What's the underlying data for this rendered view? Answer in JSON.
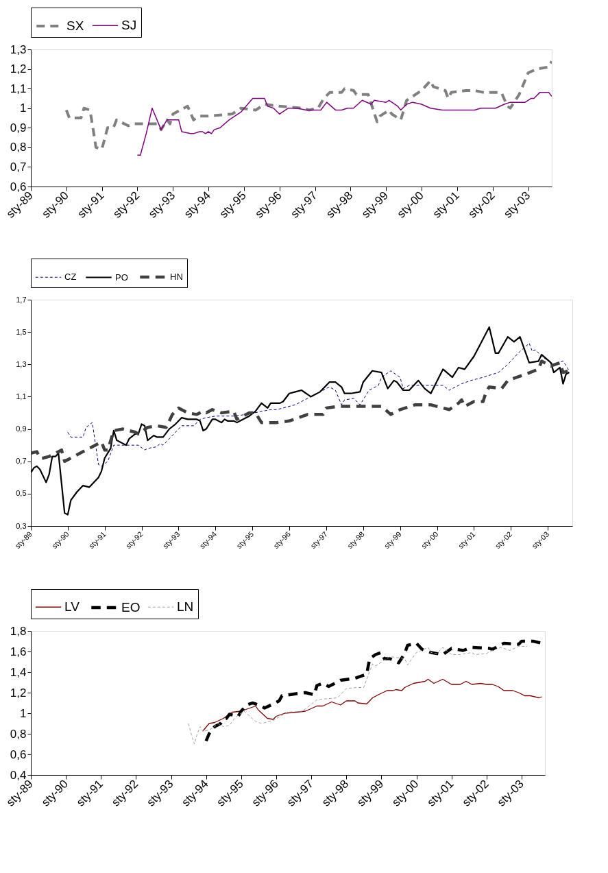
{
  "chart_data": [
    {
      "type": "line",
      "legend": "top",
      "xlim": [
        "1989-01",
        "2003-09"
      ],
      "ylim": [
        0.6,
        1.3
      ],
      "xticks": [
        {
          "value": "1989-01",
          "label": "sty-89"
        },
        {
          "value": "1990-01",
          "label": "sty-90"
        },
        {
          "value": "1991-01",
          "label": "sty-91"
        },
        {
          "value": "1992-01",
          "label": "sty-92"
        },
        {
          "value": "1993-01",
          "label": "sty-93"
        },
        {
          "value": "1994-01",
          "label": "sty-94"
        },
        {
          "value": "1995-01",
          "label": "sty-95"
        },
        {
          "value": "1996-01",
          "label": "sty-96"
        },
        {
          "value": "1997-01",
          "label": "sty-97"
        },
        {
          "value": "1998-01",
          "label": "sty-98"
        },
        {
          "value": "1999-01",
          "label": "sty-99"
        },
        {
          "value": "2000-01",
          "label": "sty-00"
        },
        {
          "value": "2001-01",
          "label": "sty-01"
        },
        {
          "value": "2002-01",
          "label": "sty-02"
        },
        {
          "value": "2003-01",
          "label": "sty-03"
        }
      ],
      "yticks": [
        {
          "value": 0.6,
          "label": "0,6"
        },
        {
          "value": 0.7,
          "label": "0,7"
        },
        {
          "value": 0.8,
          "label": "0,8"
        },
        {
          "value": 0.9,
          "label": "0,9"
        },
        1,
        {
          "value": 1.1,
          "label": "1,1"
        },
        {
          "value": 1.2,
          "label": "1,2"
        },
        {
          "value": 1.3,
          "label": "1,3"
        }
      ],
      "series": [
        {
          "name": "SX",
          "color": "#808080",
          "line_style": "dashed",
          "x": [
            "1990-01",
            "1990-02",
            "1990-06",
            "1990-07",
            "1990-09",
            "1990-10",
            "1990-11",
            "1991-01",
            "1991-03",
            "1991-05",
            "1991-06",
            "1991-10",
            "1991-12",
            "1992-06",
            "1992-08",
            "1992-09",
            "1992-11",
            "1992-12",
            "1993-01",
            "1993-06",
            "1993-08",
            "1993-10",
            "1994-01",
            "1994-09",
            "1994-12",
            "1995-05",
            "1995-08",
            "1996-01",
            "1996-09",
            "1996-11",
            "1997-02",
            "1997-04",
            "1997-06",
            "1997-10",
            "1997-11",
            "1998-02",
            "1998-03",
            "1998-07",
            "1998-10",
            "1998-11",
            "1999-02",
            "1999-03",
            "1999-06",
            "1999-08",
            "2000-01",
            "2000-04",
            "2000-05",
            "2000-09",
            "2000-10",
            "2000-11",
            "2001-04",
            "2001-07",
            "2001-10",
            "2002-04",
            "2002-06",
            "2002-07",
            "2002-10",
            "2003-01",
            "2003-04",
            "2003-08",
            "2003-09"
          ],
          "values": [
            0.99,
            0.95,
            0.95,
            1.0,
            0.99,
            0.9,
            0.8,
            0.79,
            0.9,
            0.9,
            0.94,
            0.91,
            0.92,
            0.92,
            0.92,
            0.89,
            0.94,
            0.92,
            0.97,
            1.01,
            0.94,
            0.96,
            0.96,
            0.97,
            1.0,
            0.99,
            1.02,
            1.01,
            1.0,
            0.99,
            1.0,
            1.05,
            1.08,
            1.08,
            1.1,
            1.09,
            1.07,
            1.07,
            0.93,
            0.96,
            0.99,
            0.97,
            0.94,
            1.04,
            1.09,
            1.14,
            1.11,
            1.09,
            1.05,
            1.08,
            1.09,
            1.09,
            1.08,
            1.08,
            1.01,
            1.0,
            1.07,
            1.18,
            1.2,
            1.21,
            1.24
          ]
        },
        {
          "name": "SJ",
          "color": "#800080",
          "line_style": "solid",
          "x": [
            "1992-01",
            "1992-02",
            "1992-04",
            "1992-06",
            "1992-09",
            "1992-11",
            "1993-01",
            "1993-03",
            "1993-04",
            "1993-07",
            "1993-08",
            "1993-10",
            "1993-11",
            "1993-12",
            "1994-01",
            "1994-02",
            "1994-03",
            "1994-05",
            "1994-08",
            "1994-12",
            "1995-04",
            "1995-08",
            "1995-09",
            "1995-11",
            "1996-01",
            "1996-04",
            "1996-07",
            "1996-10",
            "1997-03",
            "1997-05",
            "1997-08",
            "1997-10",
            "1997-12",
            "1998-02",
            "1998-05",
            "1998-08",
            "1998-09",
            "1999-01",
            "1999-02",
            "1999-05",
            "1999-06",
            "1999-08",
            "1999-10",
            "2000-01",
            "2000-04",
            "2000-08",
            "2001-01",
            "2001-02",
            "2001-04",
            "2001-06",
            "2001-07",
            "2001-09",
            "2002-02",
            "2002-05",
            "2002-07",
            "2002-12",
            "2003-02",
            "2003-03",
            "2003-05",
            "2003-08",
            "2003-09"
          ],
          "values": [
            0.76,
            0.76,
            0.87,
            1.0,
            0.89,
            0.94,
            0.94,
            0.94,
            0.88,
            0.87,
            0.87,
            0.88,
            0.88,
            0.87,
            0.88,
            0.87,
            0.89,
            0.9,
            0.94,
            0.98,
            1.05,
            1.05,
            1.01,
            1.0,
            0.97,
            1.0,
            1.0,
            0.99,
            0.99,
            1.03,
            0.99,
            0.99,
            1.0,
            1.0,
            1.04,
            1.02,
            1.04,
            1.03,
            1.04,
            1.01,
            0.99,
            1.02,
            1.03,
            1.02,
            1.0,
            0.99,
            0.99,
            0.99,
            0.99,
            0.99,
            0.99,
            1.0,
            1.0,
            1.02,
            1.03,
            1.03,
            1.05,
            1.05,
            1.08,
            1.08,
            1.06
          ]
        }
      ]
    },
    {
      "type": "line",
      "legend": "top",
      "xlim": [
        "1989-01",
        "2003-09"
      ],
      "ylim": [
        0.3,
        1.7
      ],
      "xticks": [
        {
          "value": "1989-01",
          "label": "sty-89"
        },
        {
          "value": "1990-01",
          "label": "sty-90"
        },
        {
          "value": "1991-01",
          "label": "sty-91"
        },
        {
          "value": "1992-01",
          "label": "sty-92"
        },
        {
          "value": "1993-01",
          "label": "sty-93"
        },
        {
          "value": "1994-01",
          "label": "sty-94"
        },
        {
          "value": "1995-01",
          "label": "sty-95"
        },
        {
          "value": "1996-01",
          "label": "sty-96"
        },
        {
          "value": "1997-01",
          "label": "sty-97"
        },
        {
          "value": "1998-01",
          "label": "sty-98"
        },
        {
          "value": "1999-01",
          "label": "sty-99"
        },
        {
          "value": "2000-01",
          "label": "sty-00"
        },
        {
          "value": "2001-01",
          "label": "sty-01"
        },
        {
          "value": "2002-01",
          "label": "sty-02"
        },
        {
          "value": "2003-01",
          "label": "sty-03"
        }
      ],
      "yticks": [
        {
          "value": 0.3,
          "label": "0,3"
        },
        {
          "value": 0.5,
          "label": "0,5"
        },
        {
          "value": 0.7,
          "label": "0,7"
        },
        {
          "value": 0.9,
          "label": "0,9"
        },
        {
          "value": 1.1,
          "label": "1,1"
        },
        {
          "value": 1.3,
          "label": "1,3"
        },
        {
          "value": 1.5,
          "label": "1,5"
        },
        {
          "value": 1.7,
          "label": "1,7"
        }
      ],
      "series": [
        {
          "name": "CZ",
          "color": "#000080",
          "line_style": "dashed",
          "x": [
            "1990-01",
            "1990-02",
            "1990-04",
            "1990-06",
            "1990-07",
            "1990-09",
            "1990-11",
            "1990-12",
            "1991-02",
            "1991-04",
            "1991-06",
            "1991-12",
            "1992-02",
            "1992-03",
            "1992-06",
            "1992-07",
            "1992-08",
            "1992-11",
            "1993-02",
            "1993-05",
            "1993-06",
            "1993-08",
            "1993-10",
            "1994-01",
            "1994-07",
            "1994-11",
            "1995-07",
            "1995-09",
            "1996-03",
            "1996-06",
            "1996-11",
            "1997-02",
            "1997-04",
            "1997-06",
            "1997-07",
            "1997-10",
            "1997-12",
            "1998-03",
            "1998-06",
            "1998-07",
            "1998-10",
            "1999-01",
            "1999-02",
            "1999-04",
            "1999-11",
            "2000-03",
            "2000-05",
            "2000-09",
            "2000-12",
            "2001-04",
            "2001-09",
            "2001-12",
            "2002-04",
            "2002-07",
            "2002-08",
            "2002-09",
            "2002-11",
            "2003-03",
            "2003-06",
            "2003-08"
          ],
          "values": [
            0.88,
            0.85,
            0.85,
            0.85,
            0.91,
            0.94,
            0.68,
            0.67,
            0.7,
            0.8,
            0.8,
            0.8,
            0.77,
            0.78,
            0.79,
            0.81,
            0.8,
            0.86,
            0.92,
            0.92,
            0.92,
            0.96,
            0.97,
            0.98,
            0.98,
            0.99,
            1.02,
            1.02,
            1.05,
            1.08,
            1.13,
            1.16,
            1.14,
            1.05,
            1.08,
            1.09,
            1.05,
            1.14,
            1.17,
            1.22,
            1.26,
            1.22,
            1.15,
            1.17,
            1.17,
            1.17,
            1.14,
            1.18,
            1.2,
            1.22,
            1.25,
            1.3,
            1.38,
            1.43,
            1.38,
            1.39,
            1.35,
            1.3,
            1.32,
            1.26
          ]
        },
        {
          "name": "PO",
          "color": "#000000",
          "line_style": "solid",
          "x": [
            "1989-01",
            "1989-02",
            "1989-03",
            "1989-04",
            "1989-06",
            "1989-07",
            "1989-08",
            "1989-09",
            "1989-10",
            "1989-12",
            "1990-01",
            "1990-02",
            "1990-04",
            "1990-06",
            "1990-08",
            "1990-09",
            "1990-11",
            "1990-12",
            "1991-01",
            "1991-03",
            "1991-04",
            "1991-05",
            "1991-08",
            "1991-09",
            "1991-11",
            "1991-12",
            "1992-01",
            "1992-02",
            "1992-03",
            "1992-05",
            "1992-06",
            "1992-08",
            "1992-10",
            "1992-12",
            "1993-02",
            "1993-04",
            "1993-07",
            "1993-08",
            "1993-09",
            "1993-10",
            "1993-12",
            "1994-01",
            "1994-03",
            "1994-04",
            "1994-05",
            "1994-07",
            "1994-08",
            "1994-09",
            "1994-12",
            "1995-02",
            "1995-04",
            "1995-06",
            "1995-07",
            "1995-10",
            "1995-11",
            "1996-01",
            "1996-03",
            "1996-05",
            "1996-08",
            "1996-11",
            "1997-02",
            "1997-04",
            "1997-06",
            "1997-07",
            "1997-09",
            "1997-12",
            "1998-01",
            "1998-04",
            "1998-07",
            "1998-09",
            "1998-11",
            "1998-12",
            "1999-02",
            "1999-04",
            "1999-07",
            "1999-09",
            "1999-11",
            "2000-03",
            "2000-06",
            "2000-08",
            "2000-10",
            "2001-01",
            "2001-03",
            "2001-06",
            "2001-08",
            "2001-09",
            "2001-12",
            "2002-02",
            "2002-04",
            "2002-07",
            "2002-10",
            "2002-11",
            "2003-02",
            "2003-03",
            "2003-05",
            "2003-06",
            "2003-07",
            "2003-08"
          ],
          "values": [
            0.63,
            0.66,
            0.67,
            0.65,
            0.57,
            0.62,
            0.73,
            0.73,
            0.75,
            0.38,
            0.37,
            0.46,
            0.51,
            0.55,
            0.54,
            0.56,
            0.6,
            0.64,
            0.72,
            0.78,
            0.89,
            0.83,
            0.8,
            0.84,
            0.87,
            0.87,
            0.93,
            0.92,
            0.83,
            0.86,
            0.85,
            0.85,
            0.9,
            0.93,
            0.97,
            0.96,
            0.96,
            0.95,
            0.89,
            0.9,
            0.96,
            0.96,
            0.94,
            0.96,
            0.95,
            0.95,
            0.94,
            0.95,
            0.98,
            1.01,
            1.06,
            1.03,
            1.06,
            1.06,
            1.07,
            1.12,
            1.13,
            1.14,
            1.1,
            1.13,
            1.19,
            1.19,
            1.16,
            1.12,
            1.12,
            1.13,
            1.19,
            1.26,
            1.25,
            1.15,
            1.2,
            1.19,
            1.14,
            1.14,
            1.2,
            1.15,
            1.12,
            1.27,
            1.22,
            1.28,
            1.27,
            1.35,
            1.42,
            1.53,
            1.37,
            1.37,
            1.47,
            1.44,
            1.47,
            1.31,
            1.32,
            1.36,
            1.31,
            1.25,
            1.28,
            1.18,
            1.24,
            1.25
          ]
        },
        {
          "name": "HN",
          "color": "#404040",
          "line_style": "dashed",
          "x": [
            "1989-01",
            "1989-03",
            "1989-04",
            "1989-05",
            "1989-07",
            "1989-09",
            "1989-11",
            "1989-12",
            "1990-03",
            "1990-06",
            "1990-09",
            "1990-12",
            "1991-01",
            "1991-02",
            "1991-04",
            "1991-07",
            "1991-11",
            "1991-12",
            "1992-03",
            "1992-06",
            "1992-09",
            "1992-11",
            "1993-01",
            "1993-04",
            "1993-07",
            "1993-09",
            "1993-10",
            "1993-12",
            "1994-03",
            "1994-07",
            "1994-08",
            "1994-12",
            "1995-02",
            "1995-04",
            "1995-09",
            "1996-01",
            "1996-07",
            "1996-12",
            "1997-01",
            "1997-05",
            "1997-12",
            "1998-07",
            "1998-10",
            "1999-01",
            "1999-06",
            "1999-11",
            "2000-05",
            "2000-08",
            "2000-09",
            "2000-10",
            "2001-01",
            "2001-04",
            "2001-05",
            "2001-06",
            "2001-10",
            "2001-12",
            "2002-03",
            "2002-06",
            "2002-10",
            "2002-11",
            "2003-02",
            "2003-05",
            "2003-06",
            "2003-08"
          ],
          "values": [
            0.75,
            0.76,
            0.72,
            0.72,
            0.73,
            0.75,
            0.77,
            0.7,
            0.73,
            0.76,
            0.79,
            0.82,
            0.77,
            0.77,
            0.89,
            0.9,
            0.88,
            0.87,
            0.91,
            0.92,
            0.91,
            0.99,
            1.03,
            1.0,
            0.99,
            1.01,
            1.0,
            1.02,
            1.0,
            1.01,
            0.96,
            1.0,
            1.0,
            0.94,
            0.94,
            0.95,
            0.99,
            0.99,
            1.03,
            1.04,
            1.04,
            1.04,
            0.99,
            1.02,
            1.05,
            1.05,
            1.02,
            1.06,
            1.08,
            1.04,
            1.07,
            1.07,
            1.13,
            1.16,
            1.15,
            1.2,
            1.22,
            1.24,
            1.27,
            1.32,
            1.29,
            1.31,
            1.25,
            1.26
          ]
        }
      ]
    },
    {
      "type": "line",
      "legend": "top",
      "xlim": [
        "1989-01",
        "2003-09"
      ],
      "ylim": [
        0.4,
        1.8
      ],
      "xticks": [
        {
          "value": "1989-01",
          "label": "sty-89"
        },
        {
          "value": "1990-01",
          "label": "sty-90"
        },
        {
          "value": "1991-01",
          "label": "sty-91"
        },
        {
          "value": "1992-01",
          "label": "sty-92"
        },
        {
          "value": "1993-01",
          "label": "sty-93"
        },
        {
          "value": "1994-01",
          "label": "sty-94"
        },
        {
          "value": "1995-01",
          "label": "sty-95"
        },
        {
          "value": "1996-01",
          "label": "sty-96"
        },
        {
          "value": "1997-01",
          "label": "sty-97"
        },
        {
          "value": "1998-01",
          "label": "sty-98"
        },
        {
          "value": "1999-01",
          "label": "sty-99"
        },
        {
          "value": "2000-01",
          "label": "sty-00"
        },
        {
          "value": "2001-01",
          "label": "sty-01"
        },
        {
          "value": "2002-01",
          "label": "sty-02"
        },
        {
          "value": "2003-01",
          "label": "sty-03"
        }
      ],
      "yticks": [
        {
          "value": 0.4,
          "label": "0,4"
        },
        {
          "value": 0.6,
          "label": "0,6"
        },
        {
          "value": 0.8,
          "label": "0,8"
        },
        1,
        {
          "value": 1.2,
          "label": "1,2"
        },
        {
          "value": 1.4,
          "label": "1,4"
        },
        {
          "value": 1.6,
          "label": "1,6"
        },
        {
          "value": 1.8,
          "label": "1,8"
        }
      ],
      "series": [
        {
          "name": "LV",
          "color": "#800000",
          "line_style": "solid",
          "x": [
            "1993-12",
            "1994-02",
            "1994-04",
            "1994-07",
            "1994-10",
            "1995-01",
            "1995-06",
            "1995-07",
            "1995-10",
            "1995-12",
            "1996-01",
            "1996-04",
            "1996-08",
            "1996-11",
            "1997-03",
            "1997-05",
            "1997-08",
            "1997-11",
            "1998-01",
            "1998-04",
            "1998-05",
            "1998-08",
            "1998-10",
            "1998-12",
            "1999-03",
            "1999-05",
            "1999-06",
            "1999-08",
            "1999-09",
            "1999-12",
            "2000-02",
            "2000-04",
            "2000-05",
            "2000-07",
            "2000-10",
            "2001-01",
            "2001-04",
            "2001-06",
            "2001-08",
            "2001-11",
            "2002-01",
            "2002-03",
            "2002-05",
            "2002-07",
            "2002-10",
            "2002-12",
            "2003-02",
            "2003-04",
            "2003-07",
            "2003-08"
          ],
          "values": [
            0.83,
            0.9,
            0.91,
            0.95,
            1.01,
            1.02,
            1.07,
            1.03,
            0.95,
            0.94,
            0.97,
            1.0,
            1.01,
            1.02,
            1.07,
            1.07,
            1.11,
            1.08,
            1.12,
            1.12,
            1.1,
            1.09,
            1.15,
            1.18,
            1.22,
            1.22,
            1.23,
            1.22,
            1.25,
            1.29,
            1.3,
            1.31,
            1.33,
            1.29,
            1.33,
            1.28,
            1.28,
            1.31,
            1.28,
            1.29,
            1.28,
            1.28,
            1.26,
            1.22,
            1.22,
            1.2,
            1.17,
            1.17,
            1.15,
            1.16
          ]
        },
        {
          "name": "EO",
          "color": "#000000",
          "line_style": "dashed",
          "x": [
            "1994-01",
            "1994-02",
            "1994-04",
            "1994-06",
            "1994-07",
            "1994-08",
            "1994-09",
            "1994-12",
            "1995-01",
            "1995-03",
            "1995-05",
            "1995-08",
            "1995-09",
            "1995-12",
            "1996-02",
            "1996-03",
            "1996-08",
            "1996-11",
            "1997-02",
            "1997-03",
            "1997-05",
            "1997-07",
            "1997-11",
            "1998-04",
            "1998-08",
            "1998-09",
            "1998-11",
            "1999-01",
            "1999-02",
            "1999-04",
            "1999-07",
            "1999-09",
            "1999-10",
            "2000-01",
            "2000-03",
            "2000-06",
            "2000-10",
            "2001-01",
            "2001-05",
            "2001-08",
            "2002-02",
            "2002-03",
            "2002-07",
            "2002-12",
            "2003-01",
            "2003-05",
            "2003-08"
          ],
          "values": [
            0.73,
            0.8,
            0.87,
            0.9,
            0.94,
            0.95,
            0.99,
            0.97,
            1.02,
            1.08,
            1.1,
            1.07,
            1.05,
            1.09,
            1.12,
            1.17,
            1.19,
            1.2,
            1.18,
            1.27,
            1.29,
            1.26,
            1.32,
            1.34,
            1.38,
            1.53,
            1.57,
            1.59,
            1.53,
            1.53,
            1.49,
            1.58,
            1.66,
            1.68,
            1.62,
            1.59,
            1.57,
            1.63,
            1.61,
            1.64,
            1.63,
            1.62,
            1.68,
            1.67,
            1.7,
            1.7,
            1.68
          ]
        },
        {
          "name": "LN",
          "color": "#a0a0a0",
          "line_style": "dashed",
          "x": [
            "1993-07",
            "1993-08",
            "1993-09",
            "1993-10",
            "1993-11",
            "1993-12",
            "1994-03",
            "1994-05",
            "1994-07",
            "1994-09",
            "1994-11",
            "1995-02",
            "1995-04",
            "1995-06",
            "1995-08",
            "1995-12",
            "1996-05",
            "1996-10",
            "1997-03",
            "1997-06",
            "1997-10",
            "1998-01",
            "1998-05",
            "1998-07",
            "1998-08",
            "1998-10",
            "1998-11",
            "1999-04",
            "1999-09",
            "1999-10",
            "2000-01",
            "2000-05",
            "2000-06",
            "2000-08",
            "2000-10",
            "2001-01",
            "2001-04",
            "2001-08",
            "2001-09",
            "2002-01",
            "2002-02",
            "2002-06",
            "2002-09",
            "2002-12",
            "2003-03"
          ],
          "values": [
            0.9,
            0.79,
            0.7,
            0.8,
            0.87,
            0.82,
            0.85,
            0.9,
            0.87,
            0.88,
            0.96,
            1.02,
            0.97,
            0.92,
            0.9,
            0.93,
            1.01,
            1.02,
            1.13,
            1.14,
            1.15,
            1.24,
            1.25,
            1.25,
            1.33,
            1.48,
            1.46,
            1.55,
            1.53,
            1.47,
            1.59,
            1.64,
            1.59,
            1.58,
            1.64,
            1.57,
            1.57,
            1.59,
            1.57,
            1.58,
            1.6,
            1.64,
            1.61,
            1.65,
            1.65
          ]
        }
      ]
    }
  ]
}
